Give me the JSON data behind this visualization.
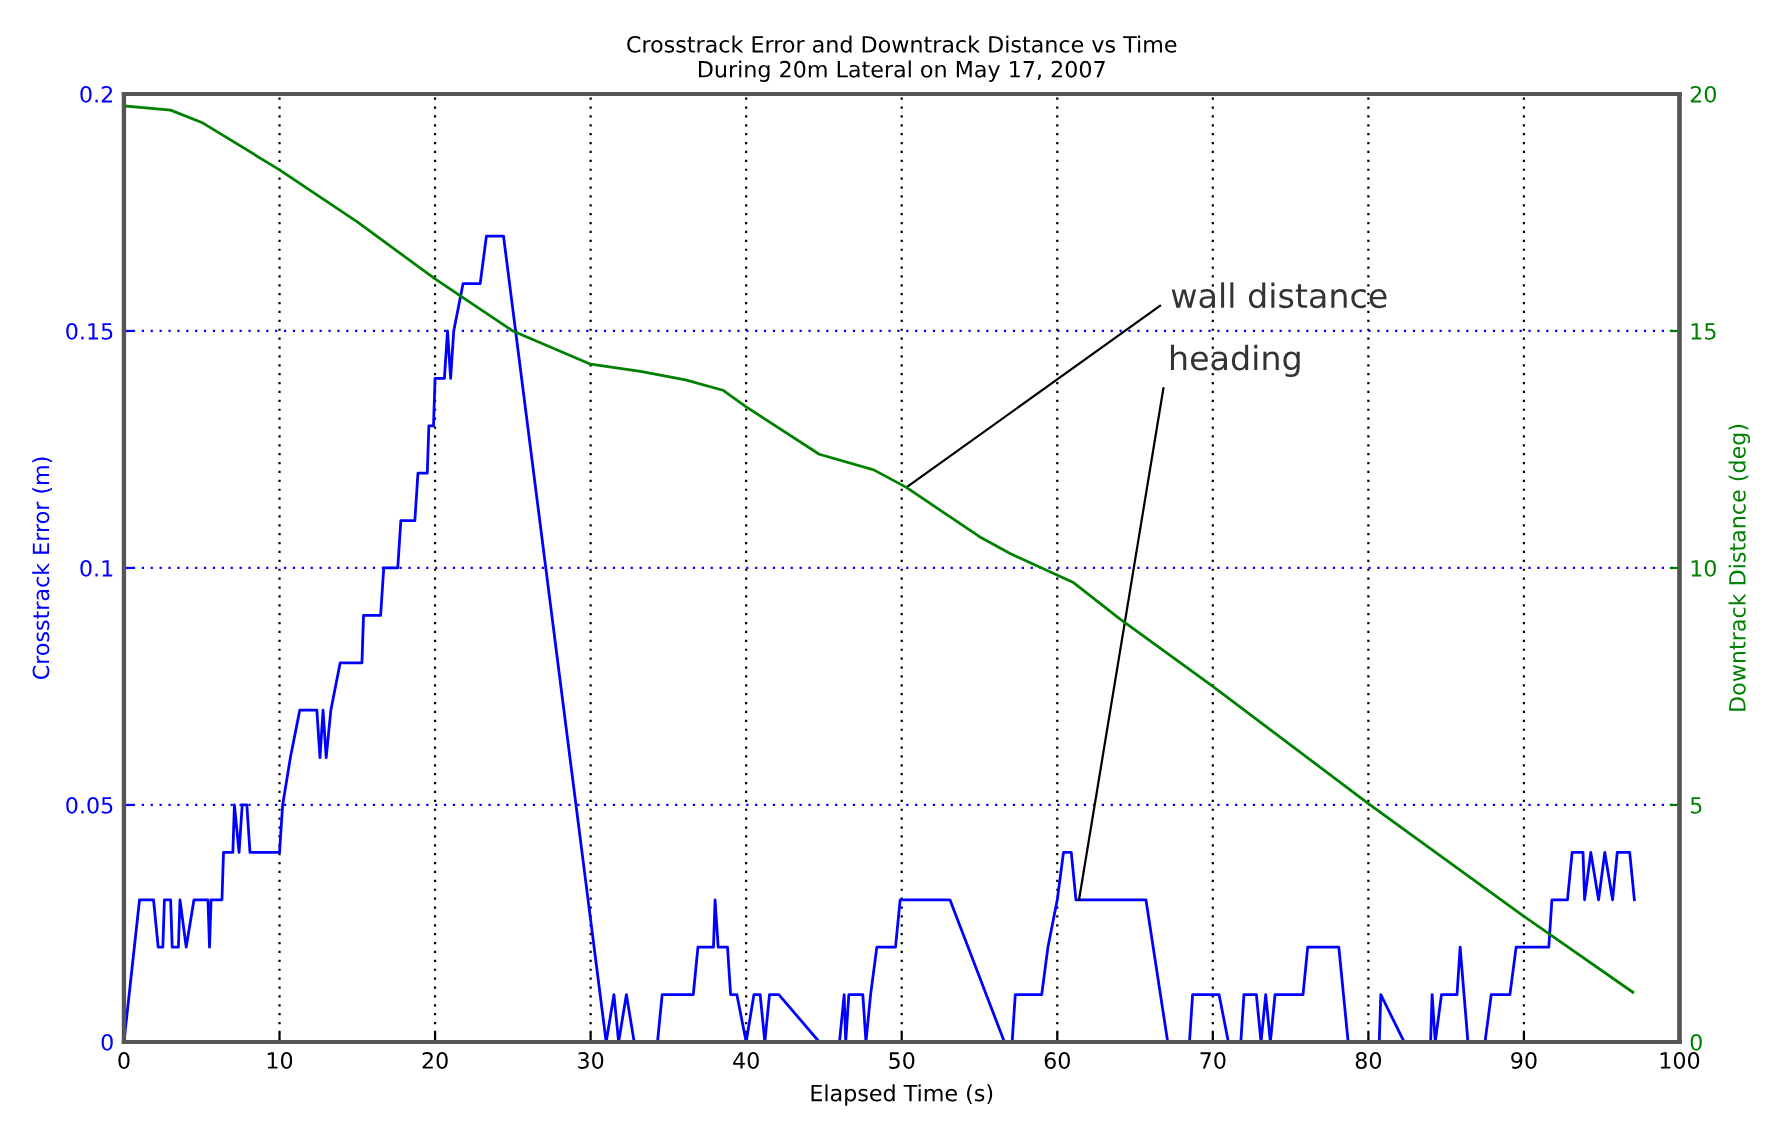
{
  "chart_data": {
    "type": "line",
    "title": "Crosstrack Error and Downtrack Distance vs Time",
    "subtitle": "During 20m Lateral on May 17, 2007",
    "xlabel": "Elapsed Time (s)",
    "ylabel": "Crosstrack Error (m)",
    "y2label": "Downtrack Distance (deg)",
    "xlim": [
      0,
      100
    ],
    "xticks": [
      0,
      10,
      20,
      30,
      40,
      50,
      60,
      70,
      80,
      90,
      100
    ],
    "ylim": [
      0,
      0.2
    ],
    "yticks": [
      0,
      0.05,
      0.1,
      0.15,
      0.2
    ],
    "y2lim": [
      0,
      20
    ],
    "y2ticks": [
      0,
      5,
      10,
      15,
      20
    ],
    "grid": true,
    "marker": "none",
    "line_style": "solid",
    "annotations": [
      {
        "text": "wall distance",
        "x": 50.3,
        "y": 0.117
      },
      {
        "text": "heading",
        "x": 61.4,
        "y": 0.03
      }
    ],
    "series": [
      {
        "color": "#0000ff",
        "x": [
          0,
          1.0,
          1.9,
          2.2,
          2.5,
          2.6,
          3.0,
          3.1,
          3.5,
          3.6,
          4.0,
          4.5,
          5.4,
          5.5,
          5.6,
          6.3,
          6.4,
          7.0,
          7.1,
          7.4,
          7.6,
          7.9,
          8.1,
          10.0,
          10.2,
          10.7,
          11.3,
          12.4,
          12.6,
          12.8,
          13.0,
          13.3,
          13.9,
          15.3,
          15.4,
          16.5,
          16.7,
          17.6,
          17.8,
          18.7,
          18.9,
          19.5,
          19.6,
          19.9,
          20.0,
          20.6,
          20.8,
          21.0,
          21.2,
          21.8,
          22.9,
          23.3,
          24.4,
          31.0,
          31.5,
          31.8,
          32.3,
          32.8,
          34.3,
          34.6,
          36.6,
          36.9,
          37.9,
          38.0,
          38.2,
          38.8,
          39.0,
          39.4,
          40.0,
          40.5,
          40.9,
          41.2,
          41.5,
          42.1,
          44.7,
          46.0,
          46.3,
          46.4,
          46.6,
          47.5,
          47.7,
          48.0,
          48.4,
          49.6,
          49.9,
          53.1,
          56.6,
          57.1,
          57.3,
          59.0,
          59.4,
          60.0,
          60.4,
          60.9,
          61.2,
          65.7,
          67.1,
          68.5,
          68.7,
          70.4,
          71.0,
          71.8,
          72.0,
          72.8,
          73.1,
          73.4,
          73.7,
          74.0,
          75.8,
          76.1,
          78.1,
          78.7,
          80.7,
          80.8,
          82.3,
          84.0,
          84.1,
          84.3,
          84.7,
          85.7,
          85.9,
          86.4,
          87.5,
          87.9,
          89.1,
          89.5,
          91.6,
          91.8,
          92.8,
          93.1,
          93.8,
          93.9,
          94.3,
          94.8,
          95.2,
          95.7,
          96.0,
          96.8,
          97.1
        ],
        "values": [
          0,
          0.03,
          0.03,
          0.02,
          0.02,
          0.03,
          0.03,
          0.02,
          0.02,
          0.03,
          0.02,
          0.03,
          0.03,
          0.02,
          0.03,
          0.03,
          0.04,
          0.04,
          0.05,
          0.04,
          0.05,
          0.05,
          0.04,
          0.04,
          0.05,
          0.06,
          0.07,
          0.07,
          0.06,
          0.07,
          0.06,
          0.07,
          0.08,
          0.08,
          0.09,
          0.09,
          0.1,
          0.1,
          0.11,
          0.11,
          0.12,
          0.12,
          0.13,
          0.13,
          0.14,
          0.14,
          0.15,
          0.14,
          0.15,
          0.16,
          0.16,
          0.17,
          0.17,
          0,
          0.01,
          0,
          0.01,
          0,
          0,
          0.01,
          0.01,
          0.02,
          0.02,
          0.03,
          0.02,
          0.02,
          0.01,
          0.01,
          0,
          0.01,
          0.01,
          0,
          0.01,
          0.01,
          0,
          0,
          0.01,
          0,
          0.01,
          0.01,
          0,
          0.01,
          0.02,
          0.02,
          0.03,
          0.03,
          0,
          0,
          0.01,
          0.01,
          0.02,
          0.03,
          0.04,
          0.04,
          0.03,
          0.03,
          0,
          0,
          0.01,
          0.01,
          0,
          0,
          0.01,
          0.01,
          0,
          0.01,
          0,
          0.01,
          0.01,
          0.02,
          0.02,
          0,
          0,
          0.01,
          0,
          0,
          0.01,
          0,
          0.01,
          0.01,
          0.02,
          0,
          0,
          0.01,
          0.01,
          0.02,
          0.02,
          0.03,
          0.03,
          0.04,
          0.04,
          0.03,
          0.04,
          0.03,
          0.04,
          0.03,
          0.04,
          0.04,
          0.03
        ]
      },
      {
        "color": "#008000",
        "axis": "y2",
        "x": [
          0,
          3,
          5,
          10,
          15,
          20,
          25,
          30,
          33.2,
          36.1,
          38.5,
          40,
          44.7,
          48.2,
          50.3,
          55,
          57,
          61,
          64,
          70,
          80,
          90,
          97
        ],
        "values": [
          19.75,
          19.66,
          19.4,
          18.4,
          17.3,
          16.1,
          15.0,
          14.3,
          14.15,
          13.97,
          13.75,
          13.4,
          12.4,
          12.07,
          11.7,
          10.66,
          10.3,
          9.7,
          8.93,
          7.5,
          5.03,
          2.65,
          1.05
        ]
      }
    ]
  }
}
